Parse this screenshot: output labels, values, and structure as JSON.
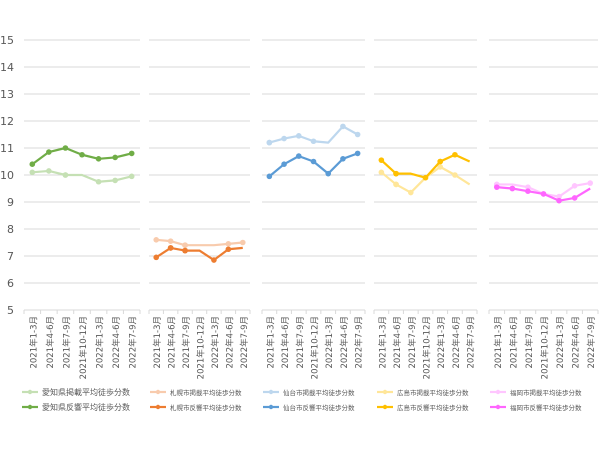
{
  "chart_data": {
    "type": "line",
    "ylim": [
      5,
      15
    ],
    "yticks": [
      "5",
      "6",
      "7",
      "8",
      "9",
      "10",
      "11",
      "12",
      "13",
      "14",
      "15"
    ],
    "grid": true,
    "legend_placement": "bottom",
    "categories": [
      "2021年1-3月",
      "2021年4-6月",
      "2021年7-9月",
      "2021年10-12月",
      "2022年1-3月",
      "2022年4-6月",
      "2022年7-9月"
    ],
    "panels": [
      {
        "series": [
          {
            "name": "愛知県掲載平均徒歩分数",
            "color": "#c5e0b4",
            "values": [
              10.1,
              10.15,
              10.0,
              10.0,
              9.75,
              9.8,
              9.95
            ]
          },
          {
            "name": "愛知県反響平均徒歩分数",
            "color": "#70ad47",
            "values": [
              10.4,
              10.85,
              11.0,
              10.75,
              10.6,
              10.65,
              10.8
            ]
          }
        ]
      },
      {
        "series": [
          {
            "name": "札幌市掲載平均徒歩分数",
            "color": "#f8cbad",
            "values": [
              7.6,
              7.55,
              7.4,
              7.4,
              7.4,
              7.45,
              7.5
            ]
          },
          {
            "name": "札幌市反響平均徒歩分数",
            "color": "#ed7d31",
            "values": [
              6.95,
              7.3,
              7.2,
              7.2,
              6.85,
              7.25,
              7.3
            ]
          }
        ]
      },
      {
        "series": [
          {
            "name": "仙台市掲載平均徒歩分数",
            "color": "#bdd7ee",
            "values": [
              11.2,
              11.35,
              11.45,
              11.25,
              11.2,
              11.8,
              11.5
            ]
          },
          {
            "name": "仙台市反響平均徒歩分数",
            "color": "#5b9bd5",
            "values": [
              9.95,
              10.4,
              10.7,
              10.5,
              10.05,
              10.6,
              10.8
            ]
          }
        ]
      },
      {
        "series": [
          {
            "name": "広島市掲載平均徒歩分数",
            "color": "#ffe699",
            "values": [
              10.1,
              9.65,
              9.35,
              9.9,
              10.3,
              10.0,
              9.65
            ]
          },
          {
            "name": "広島市反響平均徒歩分数",
            "color": "#ffc000",
            "values": [
              10.55,
              10.05,
              10.05,
              9.9,
              10.5,
              10.75,
              10.5
            ]
          }
        ]
      },
      {
        "series": [
          {
            "name": "福岡市掲載平均徒歩分数",
            "color": "#ffc6ff",
            "values": [
              9.65,
              9.65,
              9.55,
              9.3,
              9.2,
              9.6,
              9.7
            ]
          },
          {
            "name": "福岡市反響平均徒歩分数",
            "color": "#ff66ff",
            "values": [
              9.55,
              9.5,
              9.4,
              9.3,
              9.05,
              9.15,
              9.5
            ]
          }
        ]
      }
    ]
  }
}
